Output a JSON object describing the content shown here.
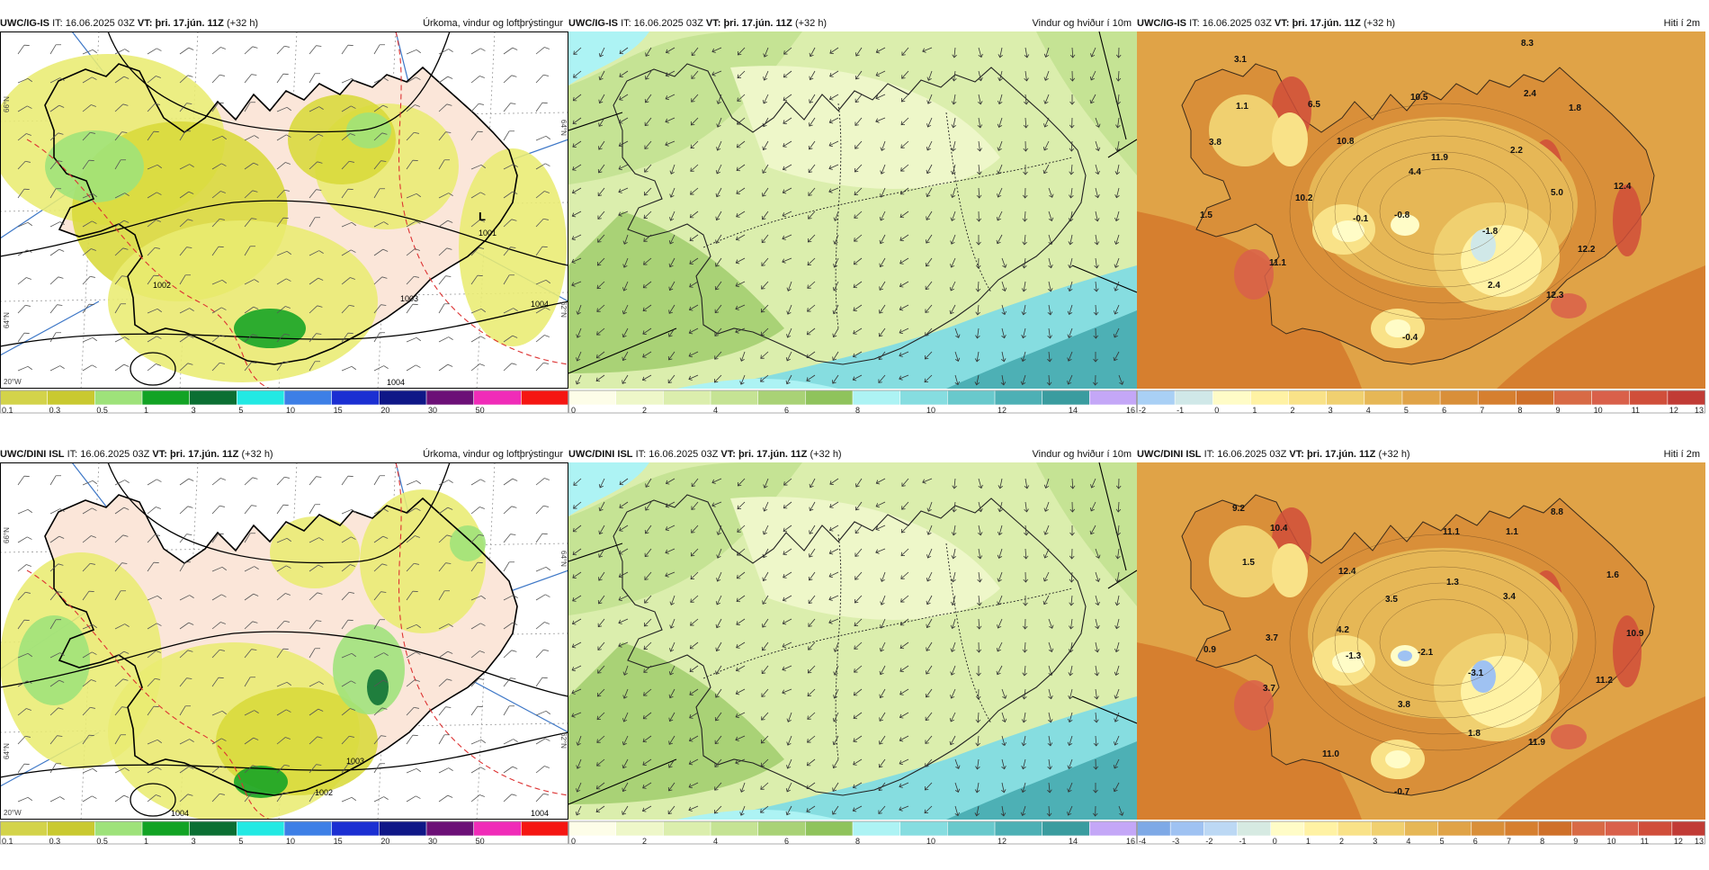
{
  "panels": [
    {
      "model": "UWC/IG-IS",
      "it_label": "IT:",
      "it_value": "16.06.2025 03Z",
      "vt_label": "VT:",
      "vt_value": "þri. 17.jún. 11Z",
      "lead": "(+32 h)",
      "title": "Úrkoma, vindur og loftþrýstingur",
      "kind": "precip",
      "framed": true,
      "scale": {
        "colors": [
          "#d3d34a",
          "#c9c930",
          "#9ee27a",
          "#12a324",
          "#0b6f33",
          "#22e9e3",
          "#3d7fe6",
          "#1b2fd2",
          "#0f1787",
          "#6c1077",
          "#f02cb8",
          "#f51612"
        ],
        "labels": [
          "0.1",
          "0.3",
          "0.5",
          "1",
          "3",
          "5",
          "10",
          "15",
          "20",
          "30",
          "50"
        ]
      },
      "pressure_labels": [
        "L",
        "1001",
        "1002",
        "1003",
        "1004",
        "1004"
      ],
      "lat_labels": [
        "66°N",
        "64°N",
        "20°W",
        "64°N",
        "62°N"
      ]
    },
    {
      "model": "UWC/IG-IS",
      "it_label": "IT:",
      "it_value": "16.06.2025 03Z",
      "vt_label": "VT:",
      "vt_value": "þri. 17.jún. 11Z",
      "lead": "(+32 h)",
      "title": "Vindur og hviður í 10m",
      "kind": "wind",
      "framed": false,
      "scale": {
        "colors": [
          "#fdfde8",
          "#eef7c9",
          "#dbeead",
          "#c5e394",
          "#a9d276",
          "#8fc35c",
          "#adf3f4",
          "#86dde0",
          "#69c9cc",
          "#4db0b5",
          "#3a9c9f",
          "#c4a7f7"
        ],
        "labels": [
          "0",
          "2",
          "4",
          "6",
          "8",
          "10",
          "12",
          "14",
          "16"
        ]
      }
    },
    {
      "model": "UWC/IG-IS",
      "it_label": "IT:",
      "it_value": "16.06.2025 03Z",
      "vt_label": "VT:",
      "vt_value": "þri. 17.jún. 11Z",
      "lead": "(+32 h)",
      "title": "Hiti í 2m",
      "kind": "temp",
      "framed": false,
      "scale": {
        "colors": [
          "#a9d0f5",
          "#d0e8e8",
          "#fffcc7",
          "#fff2a4",
          "#f9e288",
          "#f0d070",
          "#e6b756",
          "#e0a347",
          "#d98f39",
          "#d67f2f",
          "#cf7029",
          "#d86a45",
          "#d9604a",
          "#d04e3a",
          "#c13b35"
        ],
        "labels": [
          "-2",
          "-1",
          "0",
          "1",
          "2",
          "3",
          "4",
          "5",
          "6",
          "7",
          "8",
          "9",
          "10",
          "11",
          "12",
          "13"
        ]
      },
      "temps": [
        "3.1",
        "8.3",
        "1.1",
        "6.5",
        "10.5",
        "2.4",
        "1.8",
        "3.8",
        "10.8",
        "11.9",
        "2.2",
        "4.4",
        "12.4",
        "10.2",
        "5.0",
        "1.5",
        "-0.1",
        "-0.8",
        "-1.8",
        "12.2",
        "11.1",
        "2.4",
        "12.3",
        "-0.4"
      ]
    },
    {
      "model": "UWC/DINI ISL",
      "it_label": "IT:",
      "it_value": "16.06.2025 03Z",
      "vt_label": "VT:",
      "vt_value": "þri. 17.jún. 11Z",
      "lead": "(+32 h)",
      "title": "Úrkoma, vindur og loftþrýstingur",
      "kind": "precip",
      "framed": true,
      "scale": {
        "colors": [
          "#d3d34a",
          "#c9c930",
          "#9ee27a",
          "#12a324",
          "#0b6f33",
          "#22e9e3",
          "#3d7fe6",
          "#1b2fd2",
          "#0f1787",
          "#6c1077",
          "#f02cb8",
          "#f51612"
        ],
        "labels": [
          "0.1",
          "0.3",
          "0.5",
          "1",
          "3",
          "5",
          "10",
          "15",
          "20",
          "30",
          "50"
        ]
      },
      "pressure_labels": [
        "1002",
        "1003",
        "1004",
        "1004"
      ],
      "lat_labels": [
        "66°N",
        "64°N",
        "20°W",
        "64°N",
        "62°N"
      ]
    },
    {
      "model": "UWC/DINI ISL",
      "it_label": "IT:",
      "it_value": "16.06.2025 03Z",
      "vt_label": "VT:",
      "vt_value": "þri. 17.jún. 11Z",
      "lead": "(+32 h)",
      "title": "Vindur og hviður í 10m",
      "kind": "wind",
      "framed": false,
      "scale": {
        "colors": [
          "#fdfde8",
          "#eef7c9",
          "#dbeead",
          "#c5e394",
          "#a9d276",
          "#8fc35c",
          "#adf3f4",
          "#86dde0",
          "#69c9cc",
          "#4db0b5",
          "#3a9c9f",
          "#c4a7f7"
        ],
        "labels": [
          "0",
          "2",
          "4",
          "6",
          "8",
          "10",
          "12",
          "14",
          "16"
        ]
      }
    },
    {
      "model": "UWC/DINI ISL",
      "it_label": "IT:",
      "it_value": "16.06.2025 03Z",
      "vt_label": "VT:",
      "vt_value": "þri. 17.jún. 11Z",
      "lead": "(+32 h)",
      "title": "Hiti í 2m",
      "kind": "temp",
      "framed": false,
      "scale": {
        "colors": [
          "#7ea9e6",
          "#9fc2f2",
          "#bcd8f4",
          "#d6eae2",
          "#fffcc7",
          "#fff2a4",
          "#f9e288",
          "#f0d070",
          "#e6b756",
          "#e0a347",
          "#d98f39",
          "#d67f2f",
          "#cf7029",
          "#d86a45",
          "#d9604a",
          "#d04e3a",
          "#c13b35"
        ],
        "labels": [
          "-4",
          "-3",
          "-2",
          "-1",
          "0",
          "1",
          "2",
          "3",
          "4",
          "5",
          "6",
          "7",
          "8",
          "9",
          "10",
          "11",
          "12",
          "13"
        ]
      },
      "temps": [
        "9.2",
        "8.8",
        "10.4",
        "11.1",
        "1.1",
        "1.5",
        "1.6",
        "12.4",
        "1.3",
        "3.5",
        "3.4",
        "4.2",
        "10.9",
        "3.7",
        "0.9",
        "-1.3",
        "-2.1",
        "-3.1",
        "11.2",
        "3.7",
        "3.8",
        "1.8",
        "11.9",
        "11.0",
        "-0.7"
      ]
    }
  ]
}
